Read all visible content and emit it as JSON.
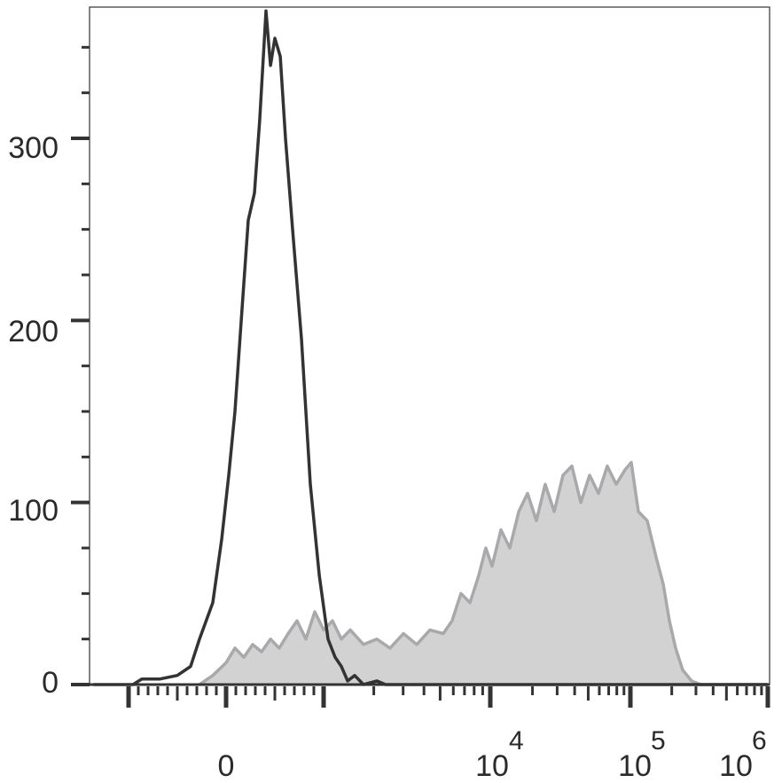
{
  "chart_data": {
    "type": "area",
    "title": "",
    "xlabel": "",
    "ylabel": "",
    "x_scale": "biexponential",
    "xlim": [
      -1360,
      1000000
    ],
    "ylim": [
      0,
      373
    ],
    "grid": false,
    "legend": "none",
    "y_ticks": [
      {
        "value": 0,
        "label": "0"
      },
      {
        "value": 100,
        "label": "100"
      },
      {
        "value": 200,
        "label": "200"
      },
      {
        "value": 300,
        "label": "300"
      }
    ],
    "y_minor_step": 25,
    "x_ticks": [
      {
        "value": 0,
        "base": "0",
        "exp": ""
      },
      {
        "value": 10000,
        "base": "10",
        "exp": "4"
      },
      {
        "value": 100000,
        "base": "10",
        "exp": "5"
      },
      {
        "value": 1000000,
        "base": "10",
        "exp": "6"
      }
    ],
    "series": [
      {
        "style": "filled",
        "fill": "#d2d2d3",
        "stroke": "#a9a9ac",
        "points": [
          [
            -273,
            0
          ],
          [
            -136,
            5
          ],
          [
            0,
            12
          ],
          [
            91,
            20
          ],
          [
            182,
            15
          ],
          [
            273,
            22
          ],
          [
            364,
            18
          ],
          [
            455,
            25
          ],
          [
            545,
            20
          ],
          [
            636,
            28
          ],
          [
            727,
            35
          ],
          [
            818,
            25
          ],
          [
            909,
            40
          ],
          [
            1000,
            30
          ],
          [
            1130,
            35
          ],
          [
            1277,
            25
          ],
          [
            1445,
            30
          ],
          [
            1735,
            22
          ],
          [
            2084,
            25
          ],
          [
            2504,
            20
          ],
          [
            3012,
            28
          ],
          [
            3622,
            22
          ],
          [
            4345,
            30
          ],
          [
            5224,
            28
          ],
          [
            5902,
            35
          ],
          [
            6668,
            50
          ],
          [
            7551,
            45
          ],
          [
            8531,
            60
          ],
          [
            9397,
            75
          ],
          [
            10300,
            65
          ],
          [
            11910,
            85
          ],
          [
            13770,
            75
          ],
          [
            15960,
            95
          ],
          [
            18450,
            105
          ],
          [
            21330,
            90
          ],
          [
            24660,
            110
          ],
          [
            28580,
            95
          ],
          [
            33040,
            115
          ],
          [
            38200,
            120
          ],
          [
            44260,
            100
          ],
          [
            51170,
            115
          ],
          [
            59160,
            105
          ],
          [
            68390,
            120
          ],
          [
            79250,
            110
          ],
          [
            91620,
            118
          ],
          [
            101500,
            122
          ],
          [
            114300,
            95
          ],
          [
            132700,
            90
          ],
          [
            153800,
            70
          ],
          [
            173400,
            55
          ],
          [
            192300,
            35
          ],
          [
            213300,
            20
          ],
          [
            240400,
            8
          ],
          [
            278600,
            2
          ],
          [
            323700,
            0
          ],
          [
            1000000,
            0
          ]
        ]
      },
      {
        "style": "line",
        "stroke": "#333333",
        "points": [
          [
            -1360,
            0
          ],
          [
            -955,
            0
          ],
          [
            -864,
            3
          ],
          [
            -682,
            3
          ],
          [
            -500,
            5
          ],
          [
            -364,
            10
          ],
          [
            -273,
            25
          ],
          [
            -136,
            45
          ],
          [
            -45,
            80
          ],
          [
            27,
            115
          ],
          [
            91,
            150
          ],
          [
            155,
            200
          ],
          [
            227,
            255
          ],
          [
            291,
            270
          ],
          [
            345,
            310
          ],
          [
            409,
            370
          ],
          [
            455,
            340
          ],
          [
            500,
            355
          ],
          [
            555,
            345
          ],
          [
            609,
            300
          ],
          [
            682,
            250
          ],
          [
            773,
            190
          ],
          [
            864,
            110
          ],
          [
            955,
            60
          ],
          [
            1063,
            25
          ],
          [
            1172,
            15
          ],
          [
            1277,
            10
          ],
          [
            1393,
            2
          ],
          [
            1535,
            5
          ],
          [
            1735,
            0
          ],
          [
            2084,
            2
          ],
          [
            2355,
            0
          ],
          [
            1000000,
            0
          ]
        ]
      }
    ]
  }
}
